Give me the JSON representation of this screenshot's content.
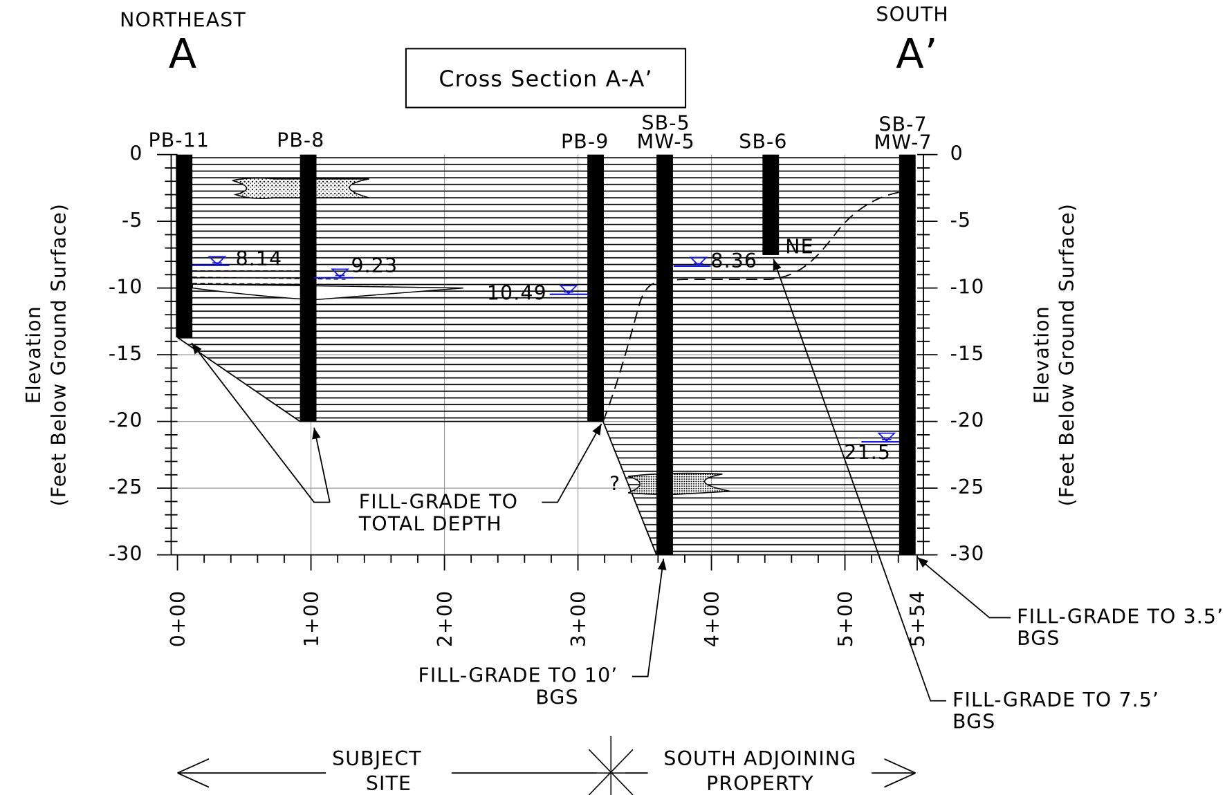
{
  "header": {
    "left_direction": "NORTHEAST",
    "left_marker": "A",
    "right_direction": "SOUTH",
    "right_marker": "A’",
    "title": "Cross Section A-A’"
  },
  "axes": {
    "elevation_label": [
      "Elevation",
      "(Feet Below Ground Surface)"
    ],
    "elevation_ticks": [
      "0",
      "-5",
      "-10",
      "-15",
      "-20",
      "-25",
      "-30"
    ],
    "station_ticks": [
      "0+00",
      "1+00",
      "2+00",
      "3+00",
      "4+00",
      "5+00",
      "5+54"
    ]
  },
  "borings": [
    {
      "label": [
        "PB-11"
      ]
    },
    {
      "label": [
        "PB-8"
      ]
    },
    {
      "label": [
        "PB-9"
      ]
    },
    {
      "label": [
        "SB-5",
        "MW-5"
      ]
    },
    {
      "label": [
        "SB-6"
      ]
    },
    {
      "label": [
        "SB-7",
        "MW-7"
      ]
    }
  ],
  "water_levels": [
    "8.14",
    "9.23",
    "10.49",
    "8.36",
    "21.5"
  ],
  "notes": {
    "not_encountered": "NE",
    "uncertain": "?"
  },
  "annotations": [
    {
      "lines": [
        "FILL-GRADE TO",
        "TOTAL DEPTH"
      ]
    },
    {
      "lines": [
        "FILL-GRADE TO 10’",
        "BGS"
      ]
    },
    {
      "lines": [
        "FILL-GRADE TO 3.5’",
        "BGS"
      ]
    },
    {
      "lines": [
        "FILL-GRADE TO 7.5’",
        "BGS"
      ]
    }
  ],
  "footer": {
    "left": [
      "SUBJECT",
      "SITE"
    ],
    "right": [
      "SOUTH ADJOINING",
      "PROPERTY"
    ]
  }
}
